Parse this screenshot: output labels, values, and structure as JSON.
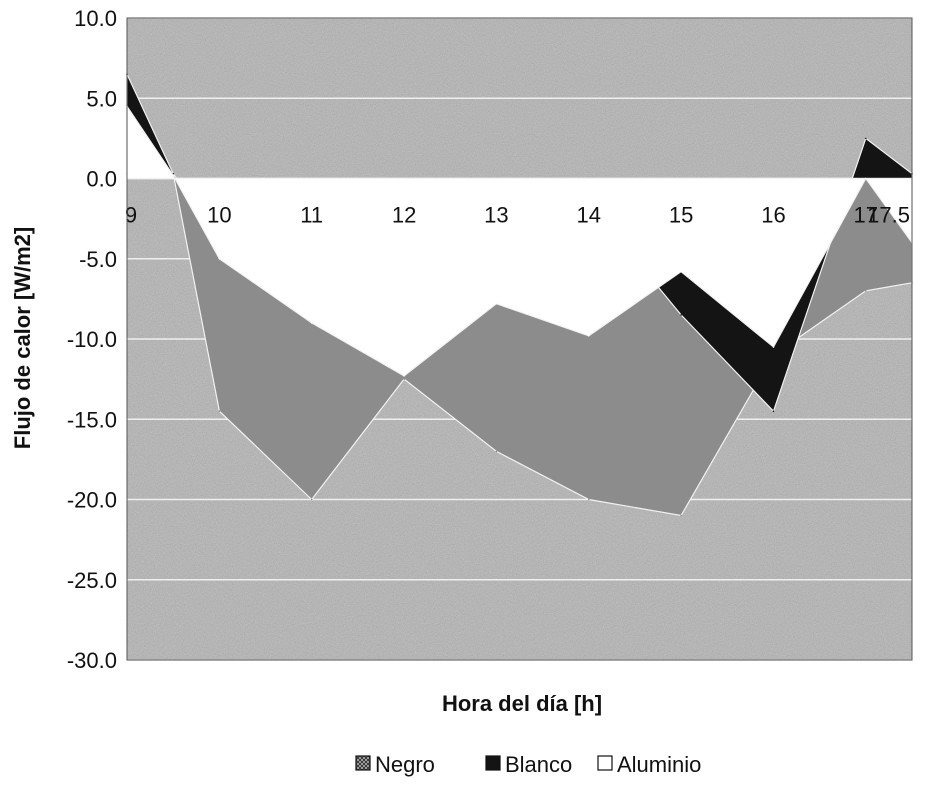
{
  "chart_data": {
    "type": "area",
    "title": "",
    "xlabel": "Hora del día [h]",
    "ylabel": "Flujo de calor [W/m2]",
    "x": [
      9,
      9.5,
      10,
      11,
      12,
      13,
      14,
      15,
      16,
      17,
      17.5
    ],
    "x_tick_labels": [
      "9",
      "10",
      "11",
      "12",
      "13",
      "14",
      "15",
      "16",
      "17",
      "17.5"
    ],
    "y_ticks": [
      "10.0",
      "5.0",
      "0.0",
      "-5.0",
      "-10.0",
      "-15.0",
      "-20.0",
      "-25.0",
      "-30.0"
    ],
    "ylim": [
      -30,
      10
    ],
    "grid": true,
    "legend_position": "bottom",
    "series": [
      {
        "name": "Negro",
        "values": [
          0.3,
          0.3,
          -14.5,
          -20.0,
          -12.5,
          -17.0,
          -20.0,
          -21.0,
          -11.0,
          -7.0,
          -6.5
        ],
        "color": "#8c8c8c"
      },
      {
        "name": "Blanco",
        "values": [
          6.5,
          0.3,
          -3.5,
          -7.5,
          -8.8,
          -2.5,
          -1.5,
          -8.5,
          -14.5,
          2.5,
          0.3
        ],
        "color": "#141414"
      },
      {
        "name": "Aluminio",
        "values": [
          4.5,
          0.2,
          -5.0,
          -9.0,
          -12.3,
          -7.8,
          -9.8,
          -5.8,
          -10.5,
          0.0,
          -4.0
        ],
        "color": "#ffffff"
      }
    ]
  }
}
